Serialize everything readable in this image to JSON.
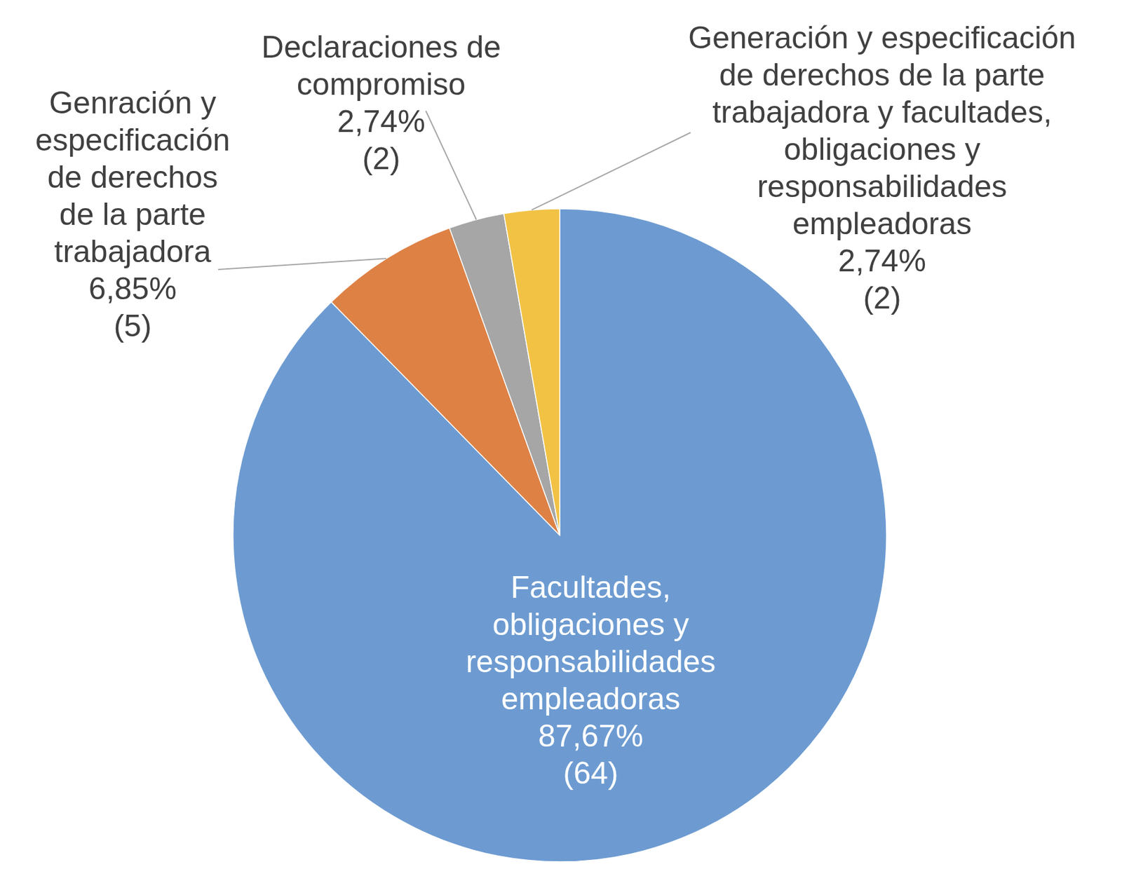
{
  "chart_data": {
    "type": "pie",
    "categories": [
      "Facultades, obligaciones y responsabilidades empleadoras",
      "Genración y especificación de derechos de la parte trabajadora",
      "Declaraciones de compromiso",
      "Generación y especificación de derechos de la parte trabajadora y facultades, obligaciones y responsabilidades empleadoras"
    ],
    "values": [
      87.67,
      6.85,
      2.74,
      2.74
    ],
    "value_labels": [
      "87,67%",
      "6,85%",
      "2,74%",
      "2,74%"
    ],
    "counts": [
      64,
      5,
      2,
      2
    ],
    "count_labels": [
      "(64)",
      "(5)",
      "(2)",
      "(2)"
    ],
    "colors": [
      "#6d9bd1",
      "#de8145",
      "#a6a6a6",
      "#f2c245"
    ],
    "data_labels": true
  }
}
